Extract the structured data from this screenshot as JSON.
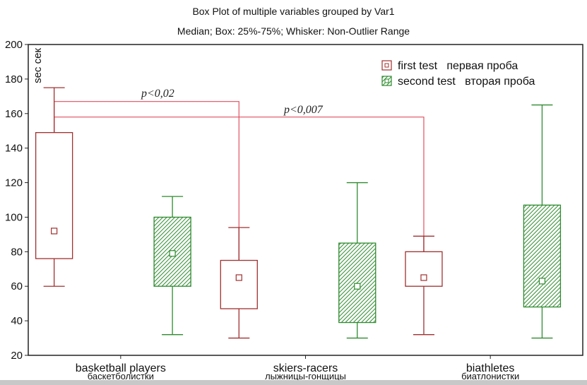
{
  "chart_data": {
    "type": "box",
    "title": "Box Plot of multiple variables grouped by  Var1",
    "subtitle": "Median; Box: 25%-75%; Whisker: Non-Outlier Range",
    "ylabel": "sec сек",
    "ylim": [
      20,
      200
    ],
    "yticks": [
      20,
      40,
      60,
      80,
      100,
      120,
      140,
      160,
      180,
      200
    ],
    "categories": [
      {
        "label": "basketball players",
        "label_ru": "баскетболистки"
      },
      {
        "label": "skiers-racers",
        "label_ru": "лыжницы-гонщицы"
      },
      {
        "label": "biathletes",
        "label_ru": "биатлонистки"
      }
    ],
    "series": [
      {
        "name": "first test   первая проба",
        "color": "#a03030",
        "fill": "none",
        "boxes": [
          {
            "min": 60,
            "q1": 76,
            "median": 92,
            "q3": 149,
            "max": 175
          },
          {
            "min": 30,
            "q1": 47,
            "median": 65,
            "q3": 75,
            "max": 94
          },
          {
            "min": 32,
            "q1": 60,
            "median": 65,
            "q3": 80,
            "max": 89
          }
        ]
      },
      {
        "name": "second test   вторая проба",
        "color": "#2e8a2e",
        "fill": "hatch",
        "boxes": [
          {
            "min": 32,
            "q1": 60,
            "median": 79,
            "q3": 100,
            "max": 112
          },
          {
            "min": 30,
            "q1": 39,
            "median": 60,
            "q3": 85,
            "max": 120
          },
          {
            "min": 30,
            "q1": 48,
            "median": 63,
            "q3": 107,
            "max": 165
          }
        ]
      }
    ],
    "annotations": [
      {
        "text": "p<0,02",
        "from_category": 0,
        "to_category": 1,
        "y": 167
      },
      {
        "text": "p<0,007",
        "from_category": 0,
        "to_category": 2,
        "y": 158
      }
    ],
    "legend_position": "top-right",
    "grid": false
  }
}
